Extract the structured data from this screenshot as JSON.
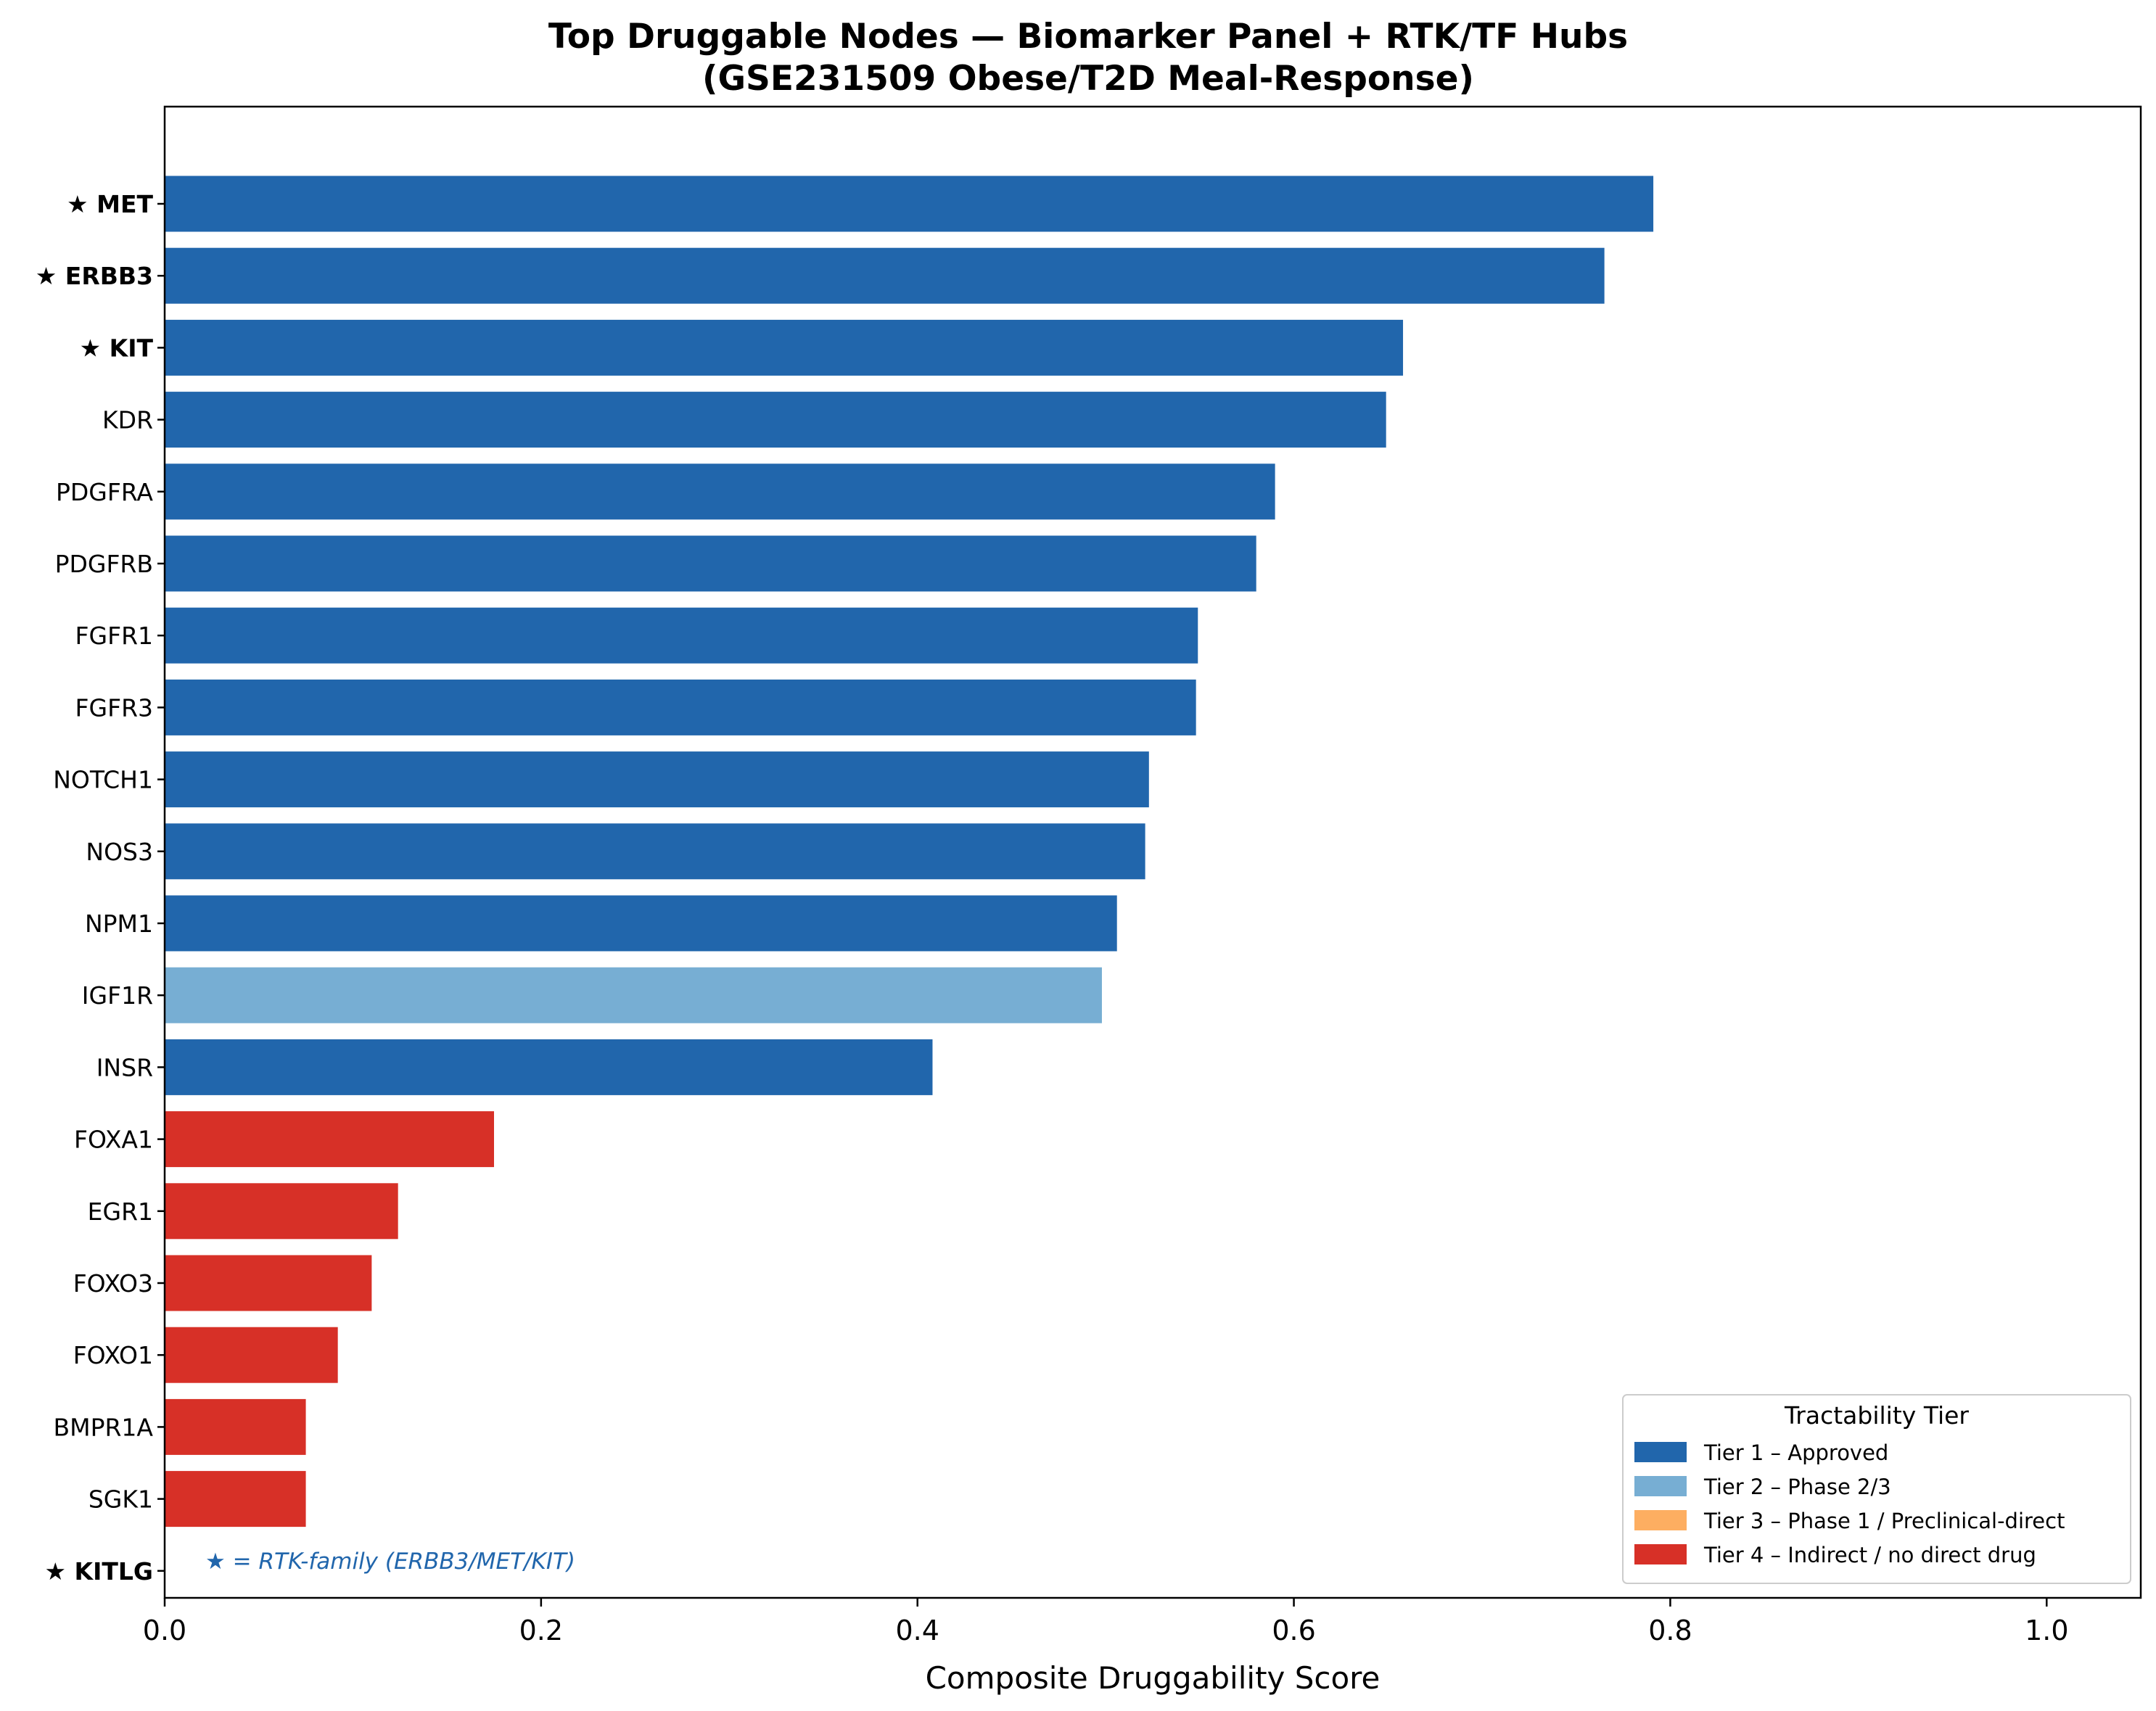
{
  "chart_data": {
    "type": "bar",
    "orientation": "horizontal",
    "title_line1": "Top Druggable Nodes — Biomarker Panel + RTK/TF Hubs",
    "title_line2": "(GSE231509 Obese/T2D Meal-Response)",
    "xlabel": "Composite Druggability Score",
    "ylabel": "",
    "xlim": [
      0,
      1.05
    ],
    "xticks": [
      "0.0",
      "0.2",
      "0.4",
      "0.6",
      "0.8",
      "1.0"
    ],
    "xtick_values": [
      0,
      0.2,
      0.4,
      0.6,
      0.8,
      1.0
    ],
    "grid": false,
    "categories": [
      {
        "label": "★ MET",
        "value": 0.791,
        "tier": 1,
        "bold": true
      },
      {
        "label": "★ ERBB3",
        "value": 0.765,
        "tier": 1,
        "bold": true
      },
      {
        "label": "★ KIT",
        "value": 0.658,
        "tier": 1,
        "bold": true
      },
      {
        "label": "KDR",
        "value": 0.649,
        "tier": 1,
        "bold": false
      },
      {
        "label": "PDGFRA",
        "value": 0.59,
        "tier": 1,
        "bold": false
      },
      {
        "label": "PDGFRB",
        "value": 0.58,
        "tier": 1,
        "bold": false
      },
      {
        "label": "FGFR1",
        "value": 0.549,
        "tier": 1,
        "bold": false
      },
      {
        "label": "FGFR3",
        "value": 0.548,
        "tier": 1,
        "bold": false
      },
      {
        "label": "NOTCH1",
        "value": 0.523,
        "tier": 1,
        "bold": false
      },
      {
        "label": "NOS3",
        "value": 0.521,
        "tier": 1,
        "bold": false
      },
      {
        "label": "NPM1",
        "value": 0.506,
        "tier": 1,
        "bold": false
      },
      {
        "label": "IGF1R",
        "value": 0.498,
        "tier": 2,
        "bold": false
      },
      {
        "label": "INSR",
        "value": 0.408,
        "tier": 1,
        "bold": false
      },
      {
        "label": "FOXA1",
        "value": 0.175,
        "tier": 4,
        "bold": false
      },
      {
        "label": "EGR1",
        "value": 0.124,
        "tier": 4,
        "bold": false
      },
      {
        "label": "FOXO3",
        "value": 0.11,
        "tier": 4,
        "bold": false
      },
      {
        "label": "FOXO1",
        "value": 0.092,
        "tier": 4,
        "bold": false
      },
      {
        "label": "BMPR1A",
        "value": 0.075,
        "tier": 4,
        "bold": false
      },
      {
        "label": "SGK1",
        "value": 0.075,
        "tier": 4,
        "bold": false
      },
      {
        "label": "★ KITLG",
        "value": 0.0,
        "tier": 4,
        "bold": true
      }
    ],
    "tier_colors": {
      "1": "#2166ac",
      "2": "#77aed3",
      "3": "#fdae61",
      "4": "#d73027"
    },
    "legend": {
      "title": "Tractability Tier",
      "position": "lower-right",
      "entries": [
        {
          "tier": 1,
          "label": "Tier 1 – Approved"
        },
        {
          "tier": 2,
          "label": "Tier 2 – Phase 2/3"
        },
        {
          "tier": 3,
          "label": "Tier 3 – Phase 1 / Preclinical-direct"
        },
        {
          "tier": 4,
          "label": "Tier 4 – Indirect / no direct drug"
        }
      ]
    },
    "annotation": "★ = RTK-family (ERBB3/MET/KIT)"
  }
}
